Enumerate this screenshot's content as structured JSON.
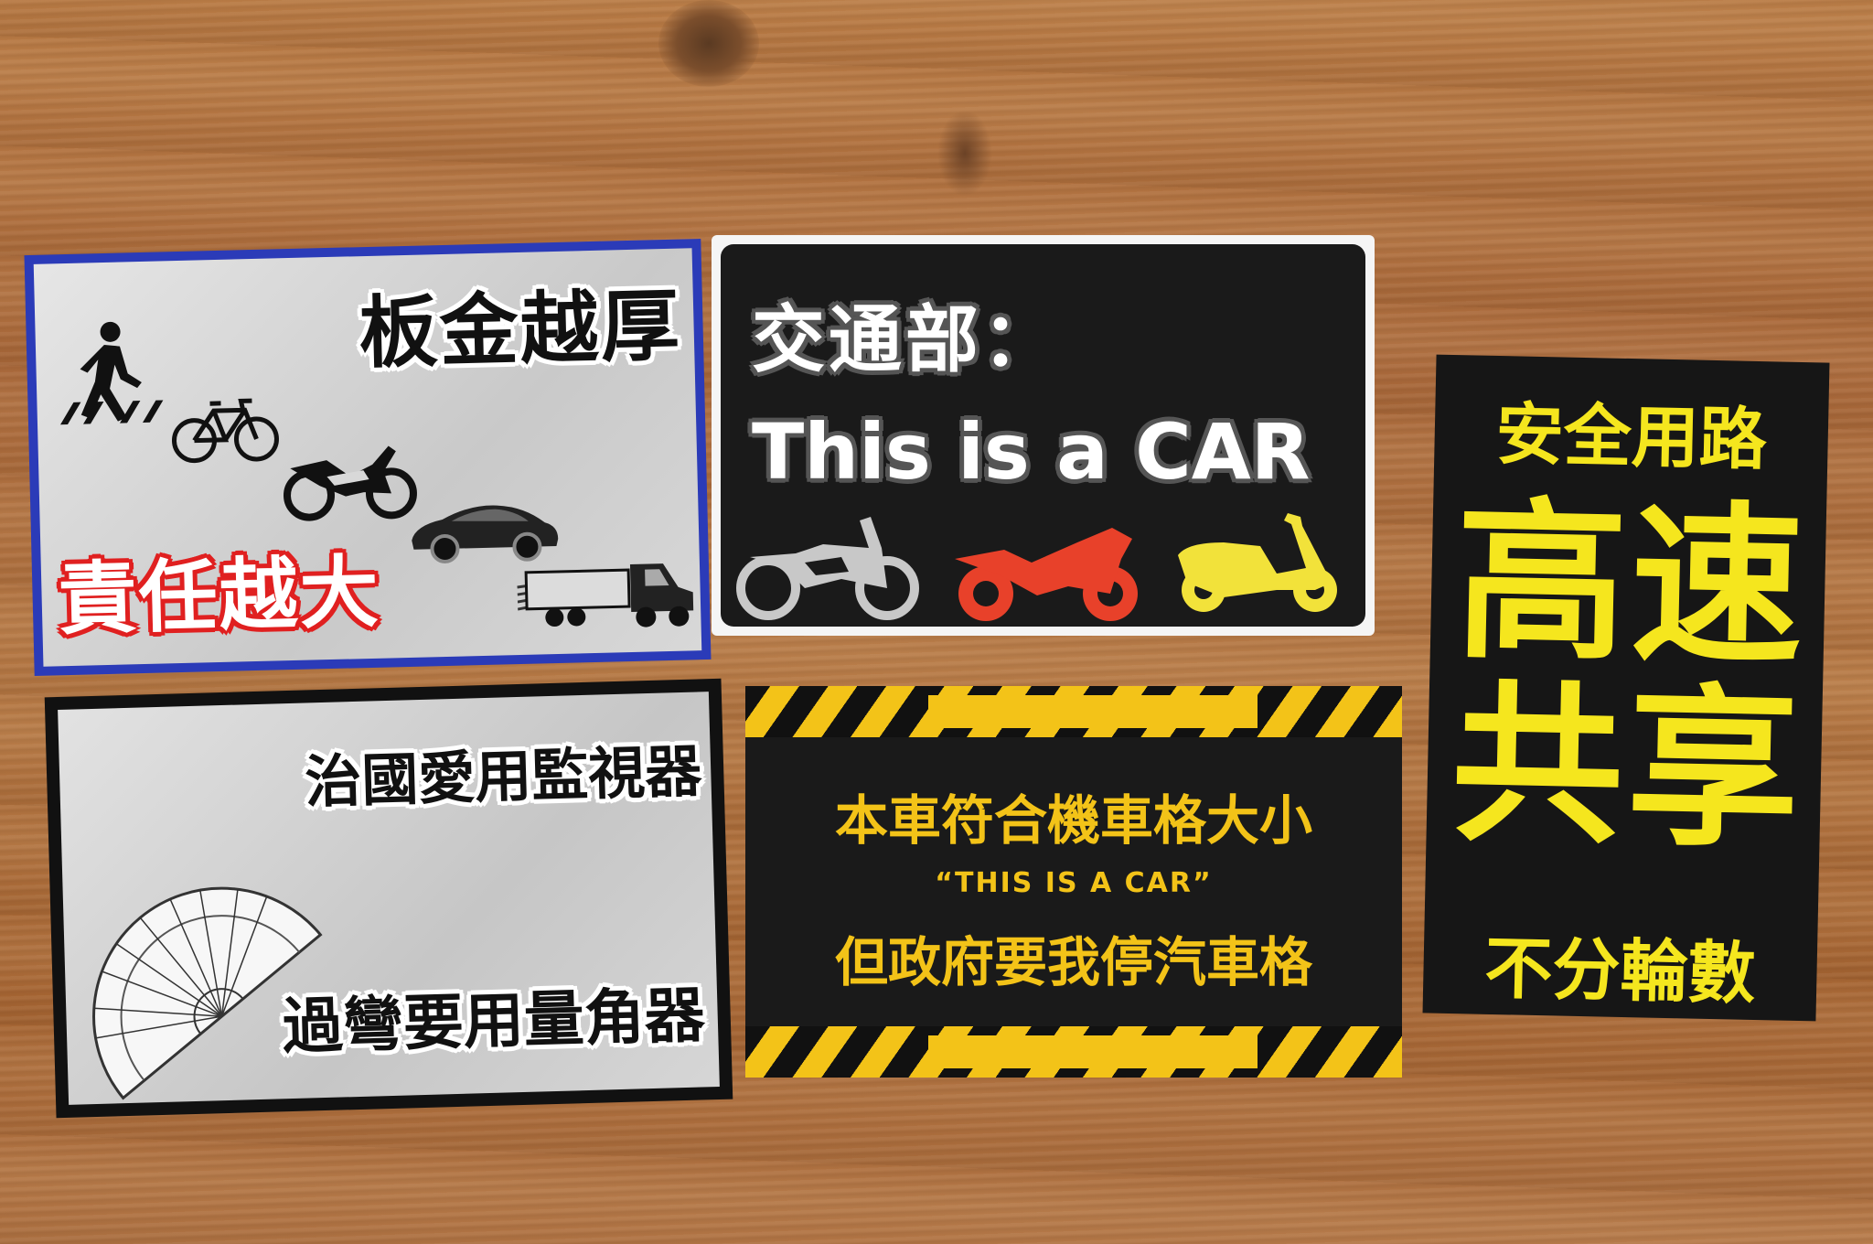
{
  "card1": {
    "top_text": "板金越厚",
    "bottom_text": "責任越大",
    "icons": [
      "pedestrian-icon",
      "bicycle-icon",
      "motorcycle-icon",
      "car-icon",
      "truck-icon"
    ]
  },
  "card2": {
    "line1": "交通部：",
    "line2": "This is a CAR",
    "icons": [
      "dirt-bike-icon",
      "sport-bike-icon",
      "scooter-icon"
    ],
    "colors": {
      "bg": "#1a1a1a",
      "dirt_bike": "#c8c8c8",
      "sport_bike": "#e8412a",
      "scooter": "#f2e23a"
    }
  },
  "card3": {
    "top_text": "治國愛用監視器",
    "bottom_text": "過彎要用量角器",
    "icons": [
      "protractor-icon"
    ]
  },
  "card4": {
    "line1": "本車符合機車格大小",
    "line2": "“THIS IS A CAR”",
    "line3": "但政府要我停汽車格",
    "colors": {
      "bg": "#1a1a1a",
      "accent": "#f3c318"
    }
  },
  "card5": {
    "top_text": "安全用路",
    "big_chars": [
      "高",
      "速",
      "共",
      "享"
    ],
    "bottom_text": "不分輪數",
    "colors": {
      "bg": "#161616",
      "text": "#f5e61e"
    }
  }
}
